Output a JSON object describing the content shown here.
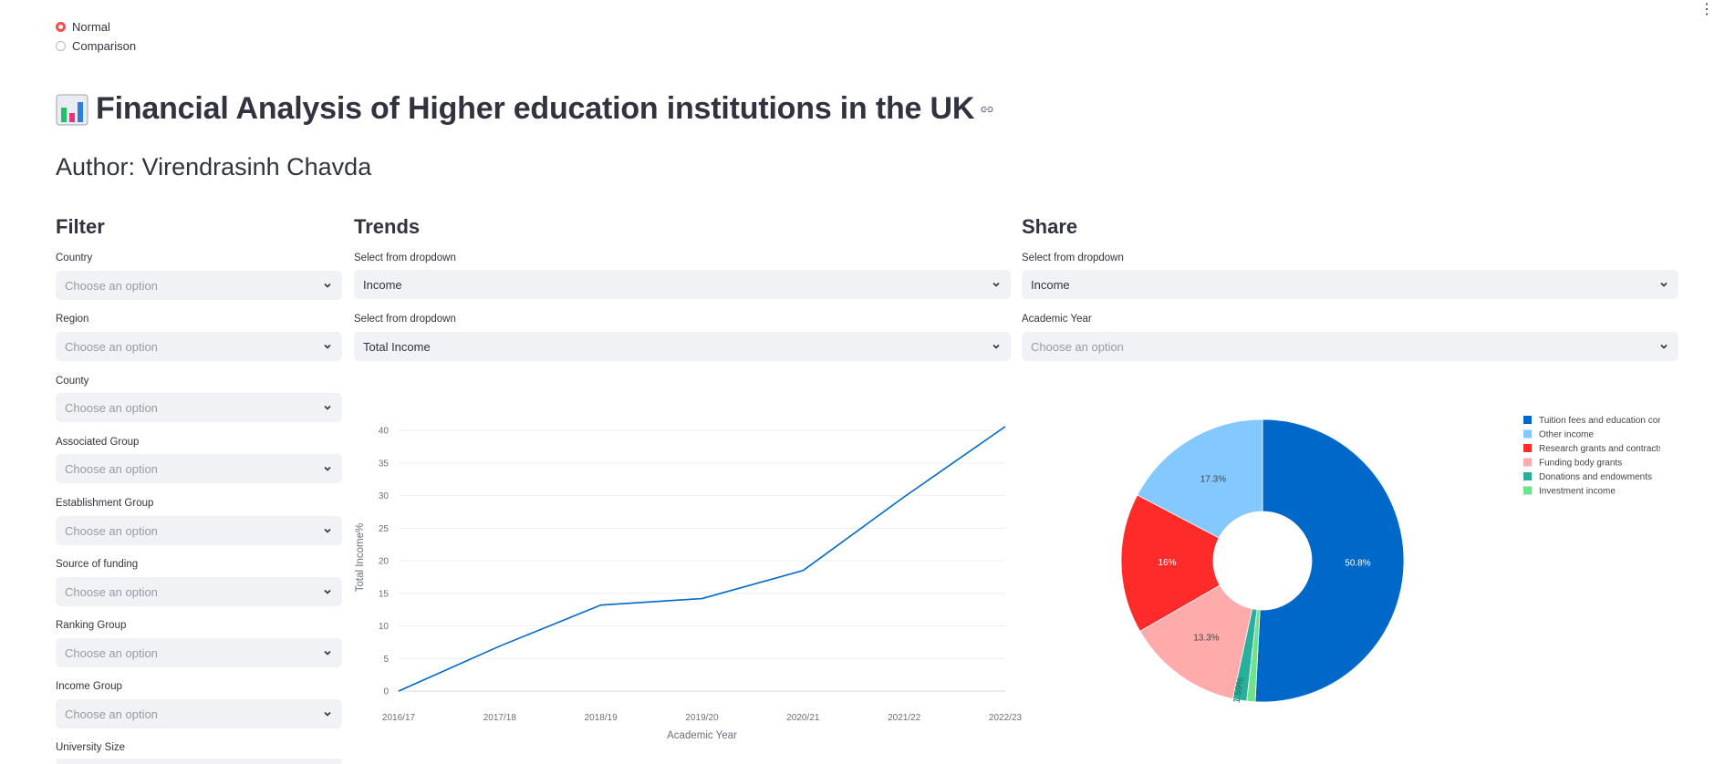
{
  "mode": {
    "options": [
      {
        "label": "Normal",
        "checked": true
      },
      {
        "label": "Comparison",
        "checked": false
      }
    ]
  },
  "header": {
    "title": "Financial Analysis of Higher education institutions in the UK",
    "author": "Author: Virendrasinh Chavda"
  },
  "filter": {
    "heading": "Filter",
    "fields": [
      {
        "label": "Country",
        "placeholder": "Choose an option"
      },
      {
        "label": "Region",
        "placeholder": "Choose an option"
      },
      {
        "label": "County",
        "placeholder": "Choose an option"
      },
      {
        "label": "Associated Group",
        "placeholder": "Choose an option"
      },
      {
        "label": "Establishment Group",
        "placeholder": "Choose an option"
      },
      {
        "label": "Source of funding",
        "placeholder": "Choose an option"
      },
      {
        "label": "Ranking Group",
        "placeholder": "Choose an option"
      },
      {
        "label": "Income Group",
        "placeholder": "Choose an option"
      },
      {
        "label": "University Size",
        "placeholder": ""
      }
    ]
  },
  "trends": {
    "heading": "Trends",
    "select1_label": "Select from dropdown",
    "select1_value": "Income",
    "select2_label": "Select from dropdown",
    "select2_value": "Total Income"
  },
  "share": {
    "heading": "Share",
    "select1_label": "Select from dropdown",
    "select1_value": "Income",
    "select2_label": "Academic Year",
    "select2_placeholder": "Choose an option"
  },
  "colors": {
    "accent": "#ff4b4b",
    "line": "#0068c9",
    "select_bg": "#f0f2f6"
  },
  "chart_data": [
    {
      "type": "line",
      "x": [
        "2016/17",
        "2017/18",
        "2018/19",
        "2019/20",
        "2020/21",
        "2021/22",
        "2022/23"
      ],
      "series": [
        {
          "values": [
            0,
            6.9,
            13.2,
            14.2,
            18.5,
            29.8,
            40.6
          ]
        }
      ],
      "xlabel": "Academic Year",
      "ylabel": "Total Income%",
      "yticks": [
        0,
        5,
        10,
        15,
        20,
        25,
        30,
        35,
        40
      ],
      "ylim": [
        0,
        41
      ],
      "grid": true,
      "color": "#0068c9"
    },
    {
      "type": "pie",
      "hole": true,
      "legend": "top-right",
      "slices": [
        {
          "name": "Tuition fees and education contracts",
          "value": 50.8,
          "label": "50.8%",
          "color": "#0068c9"
        },
        {
          "name": "Investment income",
          "value": 0.961,
          "label": "0.961%",
          "color": "#6de38c"
        },
        {
          "name": "Donations and endowments",
          "value": 1.59,
          "label": "1.59%",
          "color": "#29b09d"
        },
        {
          "name": "Funding body grants",
          "value": 13.3,
          "label": "13.3%",
          "color": "#ffabab"
        },
        {
          "name": "Research grants and contracts",
          "value": 16,
          "label": "16%",
          "color": "#ff2b2b"
        },
        {
          "name": "Other income",
          "value": 17.3,
          "label": "17.3%",
          "color": "#83c9ff"
        }
      ],
      "legend_order": [
        "Tuition fees and education contracts",
        "Other income",
        "Research grants and contracts",
        "Funding body grants",
        "Donations and endowments",
        "Investment income"
      ]
    }
  ]
}
